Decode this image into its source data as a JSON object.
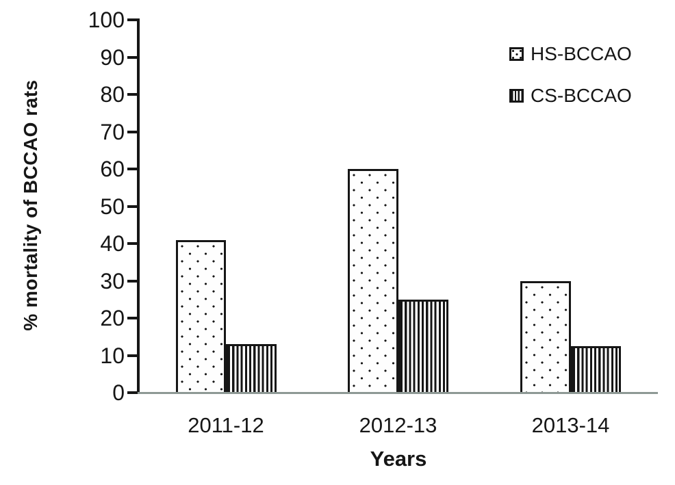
{
  "figure": {
    "background": "#ffffff",
    "ink": "#161616",
    "baseline_color": "#8e9995"
  },
  "chart_data": {
    "type": "bar",
    "title": "",
    "xlabel": "Years",
    "ylabel": "% mortality of BCCAO rats",
    "categories": [
      "2011-12",
      "2012-13",
      "2013-14"
    ],
    "series": [
      {
        "name": "HS-BCCAO",
        "pattern": "dots",
        "values": [
          41,
          60,
          30
        ]
      },
      {
        "name": "CS-BCCAO",
        "pattern": "vertical-stripes",
        "values": [
          13,
          25,
          12.5
        ]
      }
    ],
    "ylim": [
      0,
      100
    ],
    "yticks": [
      0,
      10,
      20,
      30,
      40,
      50,
      60,
      70,
      80,
      90,
      100
    ],
    "grid": false,
    "legend_position": "top-right",
    "legend_swatches": [
      "dots-swatch-icon",
      "vertical-stripes-swatch-icon"
    ]
  }
}
